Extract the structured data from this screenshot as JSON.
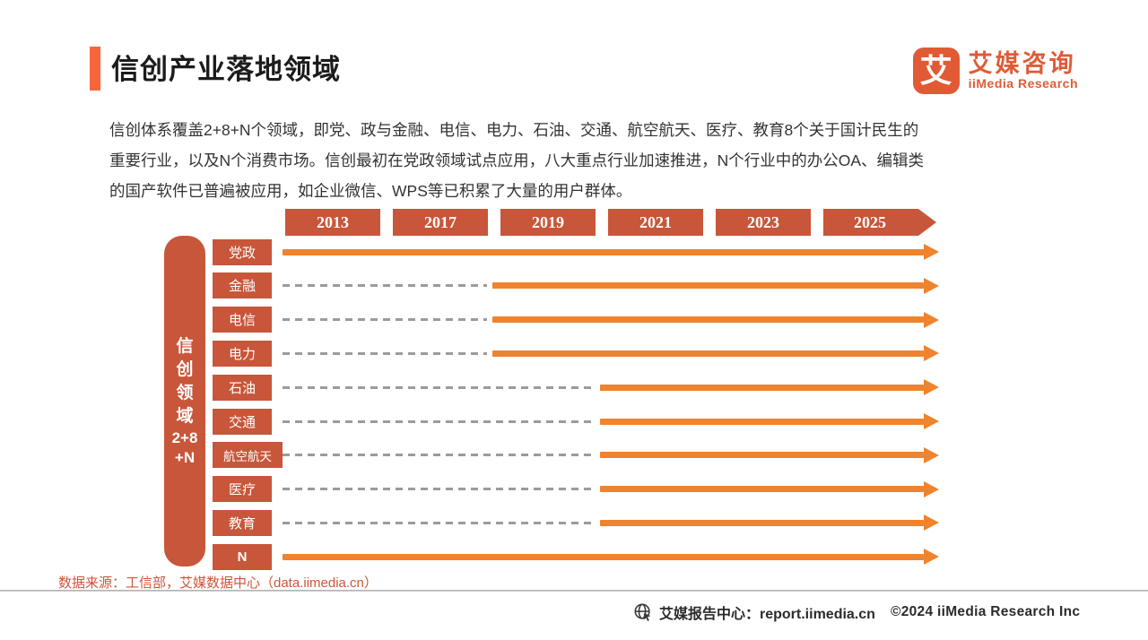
{
  "header": {
    "title": "信创产业落地领域",
    "logo": {
      "mark": "艾",
      "name": "艾媒咨询",
      "subtitle": "iiMedia Research"
    }
  },
  "intro": {
    "lines": [
      "信创体系覆盖2+8+N个领域，即党、政与金融、电信、电力、石油、交通、航空航天、医疗、教育8个关于国计民生的",
      "重要行业，以及N个消费市场。信创最初在党政领域试点应用，八大重点行业加速推进，N个行业中的办公OA、编辑类",
      "的国产软件已普遍被应用，如企业微信、WPS等已积累了大量的用户群体。"
    ]
  },
  "chart_data": {
    "type": "timeline",
    "title": "信创产业落地领域",
    "years": [
      "2013",
      "2017",
      "2019",
      "2021",
      "2023",
      "2025"
    ],
    "side_label": "信创领域2+8+N",
    "side_label_lines": [
      "信",
      "创",
      "领",
      "域",
      "2+8",
      "+N"
    ],
    "rows": [
      {
        "label": "党政",
        "start_year": "2013"
      },
      {
        "label": "金融",
        "start_year": "2019"
      },
      {
        "label": "电信",
        "start_year": "2019"
      },
      {
        "label": "电力",
        "start_year": "2019"
      },
      {
        "label": "石油",
        "start_year": "2021"
      },
      {
        "label": "交通",
        "start_year": "2021"
      },
      {
        "label": "航空航天",
        "start_year": "2021"
      },
      {
        "label": "医疗",
        "start_year": "2021"
      },
      {
        "label": "教育",
        "start_year": "2021"
      },
      {
        "label": "N",
        "start_year": "2013"
      }
    ],
    "legend_position": "none",
    "colors": {
      "box": "#C8563A",
      "arrow": "#F0832D",
      "dash": "#9b9b9b",
      "accent": "#F8653A"
    }
  },
  "source": {
    "text": "数据来源：工信部，艾媒数据中心（data.iimedia.cn）"
  },
  "footer": {
    "report_center": "艾媒报告中心：report.iimedia.cn",
    "copyright": "©2024  iiMedia Research  Inc"
  }
}
